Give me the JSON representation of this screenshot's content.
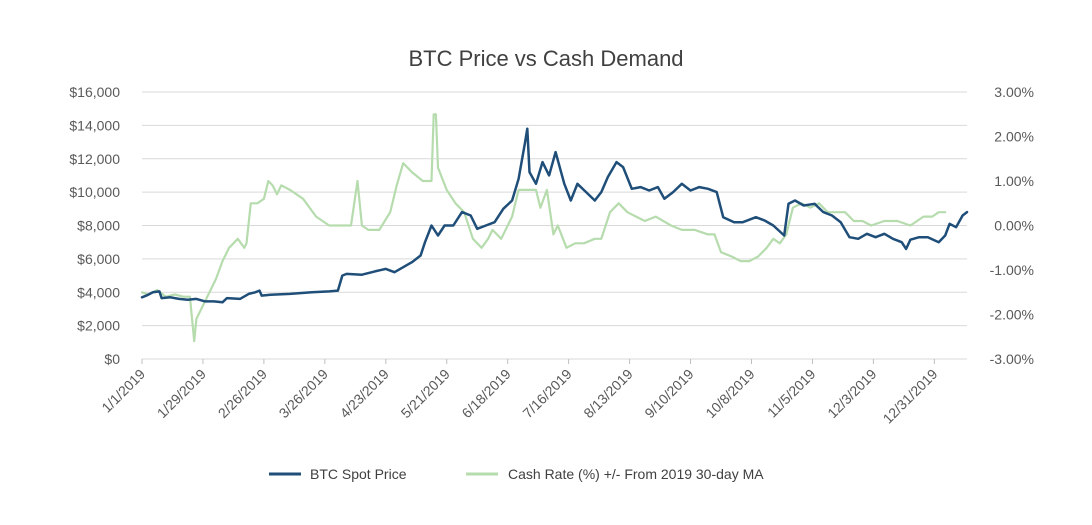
{
  "chart_data": {
    "type": "line",
    "title": "BTC Price vs Cash Demand",
    "x_axis": {
      "type": "date",
      "tick_labels": [
        "1/1/2019",
        "1/29/2019",
        "2/26/2019",
        "3/26/2019",
        "4/23/2019",
        "5/21/2019",
        "6/18/2019",
        "7/16/2019",
        "8/13/2019",
        "9/10/2019",
        "10/8/2019",
        "11/5/2019",
        "12/3/2019",
        "12/31/2019"
      ],
      "range": [
        "2019-01-01",
        "2020-01-15"
      ]
    },
    "y_left": {
      "range": [
        0,
        16000
      ],
      "tick_values": [
        0,
        2000,
        4000,
        6000,
        8000,
        10000,
        12000,
        14000,
        16000
      ],
      "tick_labels": [
        "$0",
        "$2,000",
        "$4,000",
        "$6,000",
        "$8,000",
        "$10,000",
        "$12,000",
        "$14,000",
        "$16,000"
      ]
    },
    "y_right": {
      "range": [
        -3,
        3
      ],
      "tick_values": [
        -3,
        -2,
        -1,
        0,
        1,
        2,
        3
      ],
      "tick_labels": [
        "-3.00%",
        "-2.00%",
        "-1.00%",
        "0.00%",
        "1.00%",
        "2.00%",
        "3.00%"
      ]
    },
    "grid": "horizontal",
    "legend_position": "bottom",
    "series": [
      {
        "name": "BTC Spot Price",
        "axis": "left",
        "color": "#1f4e79",
        "points": [
          [
            "2019-01-01",
            3700
          ],
          [
            "2019-01-03",
            3800
          ],
          [
            "2019-01-06",
            4000
          ],
          [
            "2019-01-09",
            4050
          ],
          [
            "2019-01-10",
            3650
          ],
          [
            "2019-01-14",
            3700
          ],
          [
            "2019-01-18",
            3600
          ],
          [
            "2019-01-22",
            3550
          ],
          [
            "2019-01-26",
            3600
          ],
          [
            "2019-01-30",
            3450
          ],
          [
            "2019-02-03",
            3450
          ],
          [
            "2019-02-07",
            3400
          ],
          [
            "2019-02-09",
            3650
          ],
          [
            "2019-02-15",
            3600
          ],
          [
            "2019-02-19",
            3900
          ],
          [
            "2019-02-22",
            4000
          ],
          [
            "2019-02-24",
            4100
          ],
          [
            "2019-02-25",
            3800
          ],
          [
            "2019-03-01",
            3850
          ],
          [
            "2019-03-10",
            3900
          ],
          [
            "2019-03-20",
            4000
          ],
          [
            "2019-03-28",
            4050
          ],
          [
            "2019-04-01",
            4100
          ],
          [
            "2019-04-03",
            5000
          ],
          [
            "2019-04-05",
            5100
          ],
          [
            "2019-04-12",
            5050
          ],
          [
            "2019-04-18",
            5250
          ],
          [
            "2019-04-23",
            5400
          ],
          [
            "2019-04-27",
            5200
          ],
          [
            "2019-05-01",
            5500
          ],
          [
            "2019-05-05",
            5800
          ],
          [
            "2019-05-09",
            6200
          ],
          [
            "2019-05-11",
            7000
          ],
          [
            "2019-05-14",
            8000
          ],
          [
            "2019-05-17",
            7400
          ],
          [
            "2019-05-20",
            8000
          ],
          [
            "2019-05-24",
            8000
          ],
          [
            "2019-05-28",
            8800
          ],
          [
            "2019-06-01",
            8600
          ],
          [
            "2019-06-04",
            7800
          ],
          [
            "2019-06-08",
            8000
          ],
          [
            "2019-06-12",
            8200
          ],
          [
            "2019-06-16",
            9000
          ],
          [
            "2019-06-20",
            9500
          ],
          [
            "2019-06-23",
            10800
          ],
          [
            "2019-06-26",
            13000
          ],
          [
            "2019-06-27",
            13800
          ],
          [
            "2019-06-28",
            11200
          ],
          [
            "2019-07-01",
            10500
          ],
          [
            "2019-07-04",
            11800
          ],
          [
            "2019-07-07",
            11000
          ],
          [
            "2019-07-10",
            12400
          ],
          [
            "2019-07-14",
            10500
          ],
          [
            "2019-07-17",
            9500
          ],
          [
            "2019-07-20",
            10500
          ],
          [
            "2019-07-24",
            10000
          ],
          [
            "2019-07-28",
            9500
          ],
          [
            "2019-07-31",
            10000
          ],
          [
            "2019-08-03",
            10900
          ],
          [
            "2019-08-07",
            11800
          ],
          [
            "2019-08-10",
            11500
          ],
          [
            "2019-08-14",
            10200
          ],
          [
            "2019-08-18",
            10300
          ],
          [
            "2019-08-22",
            10100
          ],
          [
            "2019-08-26",
            10300
          ],
          [
            "2019-08-29",
            9600
          ],
          [
            "2019-09-02",
            10000
          ],
          [
            "2019-09-06",
            10500
          ],
          [
            "2019-09-10",
            10100
          ],
          [
            "2019-09-14",
            10300
          ],
          [
            "2019-09-18",
            10200
          ],
          [
            "2019-09-22",
            10000
          ],
          [
            "2019-09-25",
            8500
          ],
          [
            "2019-09-30",
            8200
          ],
          [
            "2019-10-04",
            8200
          ],
          [
            "2019-10-10",
            8500
          ],
          [
            "2019-10-14",
            8300
          ],
          [
            "2019-10-18",
            8000
          ],
          [
            "2019-10-23",
            7400
          ],
          [
            "2019-10-25",
            9300
          ],
          [
            "2019-10-28",
            9500
          ],
          [
            "2019-11-01",
            9200
          ],
          [
            "2019-11-06",
            9300
          ],
          [
            "2019-11-10",
            8800
          ],
          [
            "2019-11-14",
            8600
          ],
          [
            "2019-11-18",
            8200
          ],
          [
            "2019-11-22",
            7300
          ],
          [
            "2019-11-26",
            7200
          ],
          [
            "2019-11-30",
            7500
          ],
          [
            "2019-12-04",
            7300
          ],
          [
            "2019-12-08",
            7500
          ],
          [
            "2019-12-12",
            7200
          ],
          [
            "2019-12-16",
            7000
          ],
          [
            "2019-12-18",
            6600
          ],
          [
            "2019-12-20",
            7150
          ],
          [
            "2019-12-24",
            7300
          ],
          [
            "2019-12-28",
            7300
          ],
          [
            "2020-01-02",
            7000
          ],
          [
            "2020-01-05",
            7400
          ],
          [
            "2020-01-07",
            8100
          ],
          [
            "2020-01-10",
            7900
          ],
          [
            "2020-01-13",
            8600
          ],
          [
            "2020-01-15",
            8800
          ]
        ]
      },
      {
        "name": "Cash Rate (%) +/- From 2019 30-day MA",
        "axis": "right",
        "color": "#b6dcae",
        "points": [
          [
            "2019-01-01",
            -1.5
          ],
          [
            "2019-01-04",
            -1.55
          ],
          [
            "2019-01-08",
            -1.45
          ],
          [
            "2019-01-12",
            -1.6
          ],
          [
            "2019-01-16",
            -1.55
          ],
          [
            "2019-01-20",
            -1.6
          ],
          [
            "2019-01-23",
            -1.6
          ],
          [
            "2019-01-25",
            -2.6
          ],
          [
            "2019-01-26",
            -2.1
          ],
          [
            "2019-01-29",
            -1.8
          ],
          [
            "2019-02-01",
            -1.5
          ],
          [
            "2019-02-04",
            -1.2
          ],
          [
            "2019-02-07",
            -0.8
          ],
          [
            "2019-02-10",
            -0.5
          ],
          [
            "2019-02-14",
            -0.3
          ],
          [
            "2019-02-17",
            -0.5
          ],
          [
            "2019-02-18",
            -0.4
          ],
          [
            "2019-02-20",
            0.5
          ],
          [
            "2019-02-23",
            0.5
          ],
          [
            "2019-02-26",
            0.6
          ],
          [
            "2019-02-28",
            1.0
          ],
          [
            "2019-03-02",
            0.9
          ],
          [
            "2019-03-04",
            0.7
          ],
          [
            "2019-03-06",
            0.9
          ],
          [
            "2019-03-10",
            0.8
          ],
          [
            "2019-03-16",
            0.6
          ],
          [
            "2019-03-22",
            0.2
          ],
          [
            "2019-03-28",
            0.0
          ],
          [
            "2019-04-03",
            0.0
          ],
          [
            "2019-04-07",
            0.0
          ],
          [
            "2019-04-10",
            1.0
          ],
          [
            "2019-04-12",
            0.0
          ],
          [
            "2019-04-15",
            -0.1
          ],
          [
            "2019-04-20",
            -0.1
          ],
          [
            "2019-04-25",
            0.3
          ],
          [
            "2019-04-28",
            0.9
          ],
          [
            "2019-05-01",
            1.4
          ],
          [
            "2019-05-05",
            1.2
          ],
          [
            "2019-05-10",
            1.0
          ],
          [
            "2019-05-14",
            1.0
          ],
          [
            "2019-05-15",
            2.5
          ],
          [
            "2019-05-16",
            2.5
          ],
          [
            "2019-05-17",
            1.3
          ],
          [
            "2019-05-21",
            0.8
          ],
          [
            "2019-05-25",
            0.5
          ],
          [
            "2019-05-29",
            0.3
          ],
          [
            "2019-06-02",
            -0.3
          ],
          [
            "2019-06-06",
            -0.5
          ],
          [
            "2019-06-09",
            -0.3
          ],
          [
            "2019-06-11",
            -0.1
          ],
          [
            "2019-06-15",
            -0.3
          ],
          [
            "2019-06-20",
            0.2
          ],
          [
            "2019-06-23",
            0.8
          ],
          [
            "2019-06-26",
            0.8
          ],
          [
            "2019-07-01",
            0.8
          ],
          [
            "2019-07-03",
            0.4
          ],
          [
            "2019-07-06",
            0.8
          ],
          [
            "2019-07-09",
            -0.2
          ],
          [
            "2019-07-11",
            0.0
          ],
          [
            "2019-07-15",
            -0.5
          ],
          [
            "2019-07-19",
            -0.4
          ],
          [
            "2019-07-23",
            -0.4
          ],
          [
            "2019-07-28",
            -0.3
          ],
          [
            "2019-07-31",
            -0.3
          ],
          [
            "2019-08-04",
            0.3
          ],
          [
            "2019-08-08",
            0.5
          ],
          [
            "2019-08-12",
            0.3
          ],
          [
            "2019-08-16",
            0.2
          ],
          [
            "2019-08-20",
            0.1
          ],
          [
            "2019-08-25",
            0.2
          ],
          [
            "2019-09-01",
            0.0
          ],
          [
            "2019-09-06",
            -0.1
          ],
          [
            "2019-09-12",
            -0.1
          ],
          [
            "2019-09-18",
            -0.2
          ],
          [
            "2019-09-21",
            -0.2
          ],
          [
            "2019-09-24",
            -0.6
          ],
          [
            "2019-09-29",
            -0.7
          ],
          [
            "2019-10-03",
            -0.8
          ],
          [
            "2019-10-07",
            -0.8
          ],
          [
            "2019-10-11",
            -0.7
          ],
          [
            "2019-10-15",
            -0.5
          ],
          [
            "2019-10-18",
            -0.3
          ],
          [
            "2019-10-21",
            -0.4
          ],
          [
            "2019-10-24",
            -0.2
          ],
          [
            "2019-10-27",
            0.4
          ],
          [
            "2019-10-31",
            0.5
          ],
          [
            "2019-11-04",
            0.4
          ],
          [
            "2019-11-08",
            0.5
          ],
          [
            "2019-11-12",
            0.3
          ],
          [
            "2019-11-16",
            0.3
          ],
          [
            "2019-11-20",
            0.3
          ],
          [
            "2019-11-24",
            0.1
          ],
          [
            "2019-11-28",
            0.1
          ],
          [
            "2019-12-02",
            0.0
          ],
          [
            "2019-12-08",
            0.1
          ],
          [
            "2019-12-14",
            0.1
          ],
          [
            "2019-12-20",
            0.0
          ],
          [
            "2019-12-26",
            0.2
          ],
          [
            "2019-12-30",
            0.2
          ],
          [
            "2020-01-02",
            0.3
          ],
          [
            "2020-01-05",
            0.3
          ]
        ]
      }
    ]
  }
}
